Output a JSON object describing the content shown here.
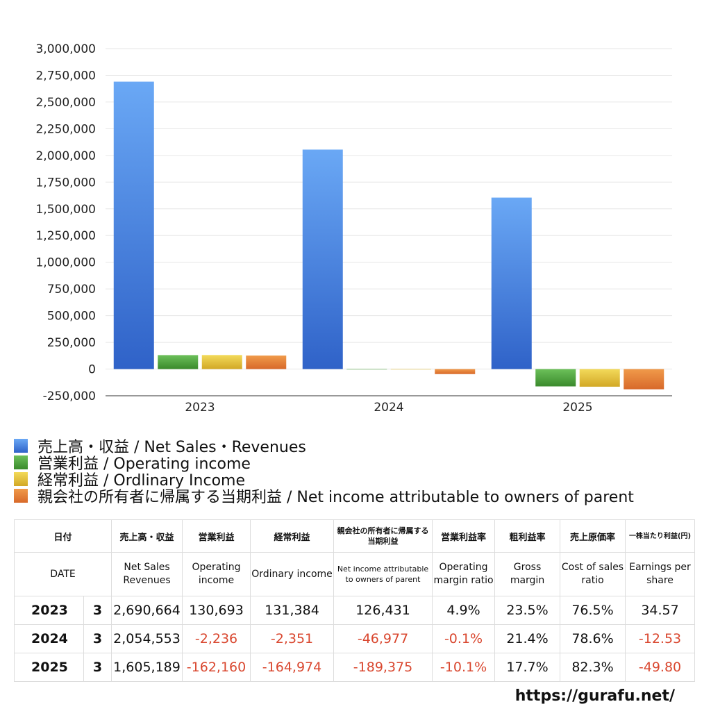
{
  "chart_data": {
    "type": "bar",
    "categories": [
      "2023",
      "2024",
      "2025"
    ],
    "series": [
      {
        "name": "売上高・収益 / Net Sales・Revenues",
        "color": "#4a87e0",
        "values": [
          2690664,
          2054553,
          1605189
        ]
      },
      {
        "name": "営業利益 / Operating income",
        "color": "#4f9e3c",
        "values": [
          130693,
          -2236,
          -162160
        ]
      },
      {
        "name": "経常利益 / Ordlinary Income",
        "color": "#e5c13e",
        "values": [
          131384,
          -2351,
          -164974
        ]
      },
      {
        "name": "親会社の所有者に帰属する当期利益 / Net income attributable to owners of parent",
        "color": "#e07b30",
        "values": [
          126431,
          -46977,
          -189375
        ]
      }
    ],
    "ylim": [
      -250000,
      3000000
    ],
    "yticks": [
      -250000,
      0,
      250000,
      500000,
      750000,
      1000000,
      1250000,
      1500000,
      1750000,
      2000000,
      2250000,
      2500000,
      2750000,
      3000000
    ],
    "ytick_labels": [
      "-250,000",
      "0",
      "250,000",
      "500,000",
      "750,000",
      "1,000,000",
      "1,250,000",
      "1,500,000",
      "1,750,000",
      "2,000,000",
      "2,250,000",
      "2,500,000",
      "2,750,000",
      "3,000,000"
    ],
    "grid": true,
    "legend_position": "bottom-left"
  },
  "table": {
    "header_jp": [
      "日付",
      "売上高・収益",
      "営業利益",
      "経常利益",
      "親会社の所有者に帰属する当期利益",
      "営業利益率",
      "粗利益率",
      "売上原価率",
      "一株当たり利益(円)"
    ],
    "header_en": [
      "DATE",
      "Net Sales Revenues",
      "Operating income",
      "Ordinary income",
      "Net income attributable to owners of parent",
      "Operating margin ratio",
      "Gross margin",
      "Cost of sales ratio",
      "Earnings per share"
    ],
    "rows": [
      {
        "year": "2023",
        "month": "3",
        "sales": "2,690,664",
        "op": "130,693",
        "ord": "131,384",
        "net": "126,431",
        "opm": "4.9%",
        "gm": "23.5%",
        "cos": "76.5%",
        "eps": "34.57"
      },
      {
        "year": "2024",
        "month": "3",
        "sales": "2,054,553",
        "op": "-2,236",
        "ord": "-2,351",
        "net": "-46,977",
        "opm": "-0.1%",
        "gm": "21.4%",
        "cos": "78.6%",
        "eps": "-12.53"
      },
      {
        "year": "2025",
        "month": "3",
        "sales": "1,605,189",
        "op": "-162,160",
        "ord": "-164,974",
        "net": "-189,375",
        "opm": "-10.1%",
        "gm": "17.7%",
        "cos": "82.3%",
        "eps": "-49.80"
      }
    ]
  },
  "footer": {
    "url": "https://gurafu.net/"
  }
}
